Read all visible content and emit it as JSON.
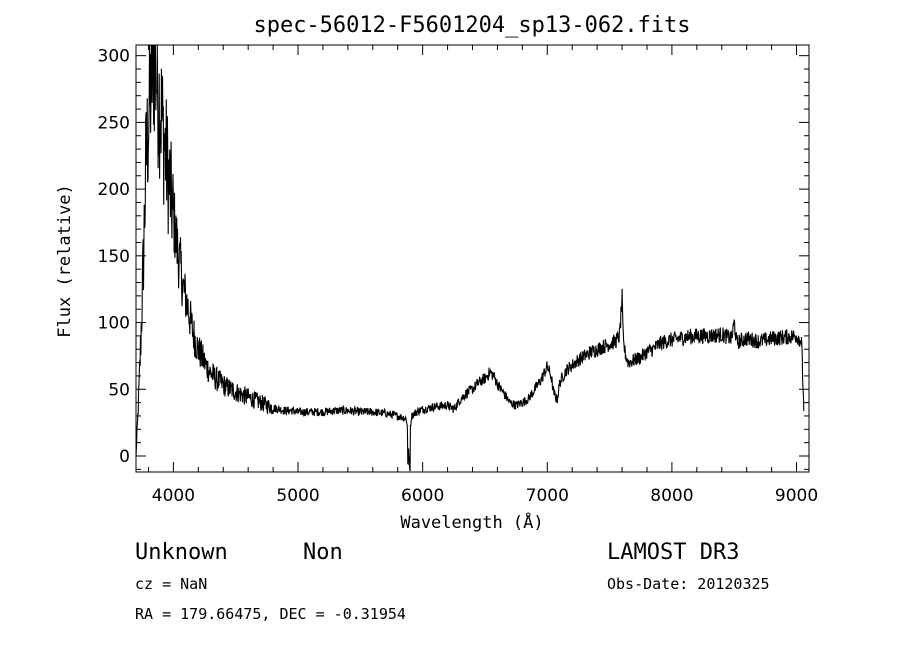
{
  "chart_data": {
    "type": "line",
    "title": "spec-56012-F5601204_sp13-062.fits",
    "xlabel": "Wavelength (Å)",
    "ylabel": "Flux (relative)",
    "xlim": [
      3700,
      9100
    ],
    "ylim": [
      -12,
      308
    ],
    "xticks": [
      4000,
      5000,
      6000,
      7000,
      8000,
      9000
    ],
    "yticks": [
      0,
      50,
      100,
      150,
      200,
      250,
      300
    ],
    "series": [
      {
        "name": "flux",
        "x": [
          3700,
          3720,
          3740,
          3760,
          3780,
          3800,
          3820,
          3840,
          3860,
          3880,
          3900,
          3920,
          3940,
          3960,
          3980,
          4000,
          4020,
          4040,
          4060,
          4080,
          4100,
          4120,
          4140,
          4160,
          4180,
          4200,
          4230,
          4260,
          4300,
          4340,
          4380,
          4420,
          4460,
          4500,
          4550,
          4600,
          4650,
          4700,
          4750,
          4800,
          4850,
          4900,
          4950,
          5000,
          5100,
          5200,
          5300,
          5400,
          5500,
          5600,
          5700,
          5800,
          5870,
          5890,
          5910,
          5950,
          6000,
          6100,
          6200,
          6250,
          6300,
          6350,
          6400,
          6450,
          6500,
          6540,
          6570,
          6600,
          6650,
          6700,
          6750,
          6800,
          6850,
          6900,
          6950,
          7000,
          7030,
          7050,
          7080,
          7100,
          7150,
          7200,
          7250,
          7300,
          7350,
          7400,
          7450,
          7500,
          7550,
          7580,
          7600,
          7610,
          7630,
          7650,
          7700,
          7750,
          7800,
          7850,
          7900,
          7950,
          8000,
          8050,
          8100,
          8200,
          8300,
          8400,
          8480,
          8500,
          8520,
          8600,
          8700,
          8800,
          8900,
          9000,
          9020,
          9040,
          9060
        ],
        "values": [
          0,
          40,
          90,
          150,
          220,
          250,
          280,
          300,
          290,
          270,
          260,
          240,
          225,
          210,
          195,
          180,
          165,
          150,
          140,
          125,
          118,
          110,
          100,
          92,
          85,
          80,
          74,
          68,
          62,
          58,
          55,
          52,
          50,
          48,
          46,
          44,
          42,
          40,
          38,
          36,
          35,
          34,
          34,
          33,
          33,
          33,
          34,
          34,
          33,
          33,
          32,
          30,
          28,
          8,
          30,
          33,
          35,
          37,
          38,
          35,
          42,
          47,
          50,
          55,
          58,
          63,
          60,
          54,
          47,
          40,
          38,
          40,
          43,
          50,
          57,
          67,
          60,
          48,
          42,
          55,
          64,
          68,
          72,
          75,
          78,
          80,
          82,
          84,
          86,
          90,
          118,
          85,
          75,
          70,
          72,
          74,
          78,
          80,
          84,
          86,
          87,
          88,
          89,
          90,
          90,
          91,
          88,
          100,
          85,
          88,
          86,
          88,
          89,
          90,
          88,
          86,
          30
        ]
      }
    ]
  },
  "annotations": {
    "class_label": "Unknown",
    "subclass_label": "Non",
    "survey_label": "LAMOST DR3",
    "redshift_text": "cz = NaN",
    "obs_date_text": "Obs-Date: 20120325",
    "coords_text": "RA = 179.66475, DEC =  -0.31954"
  }
}
